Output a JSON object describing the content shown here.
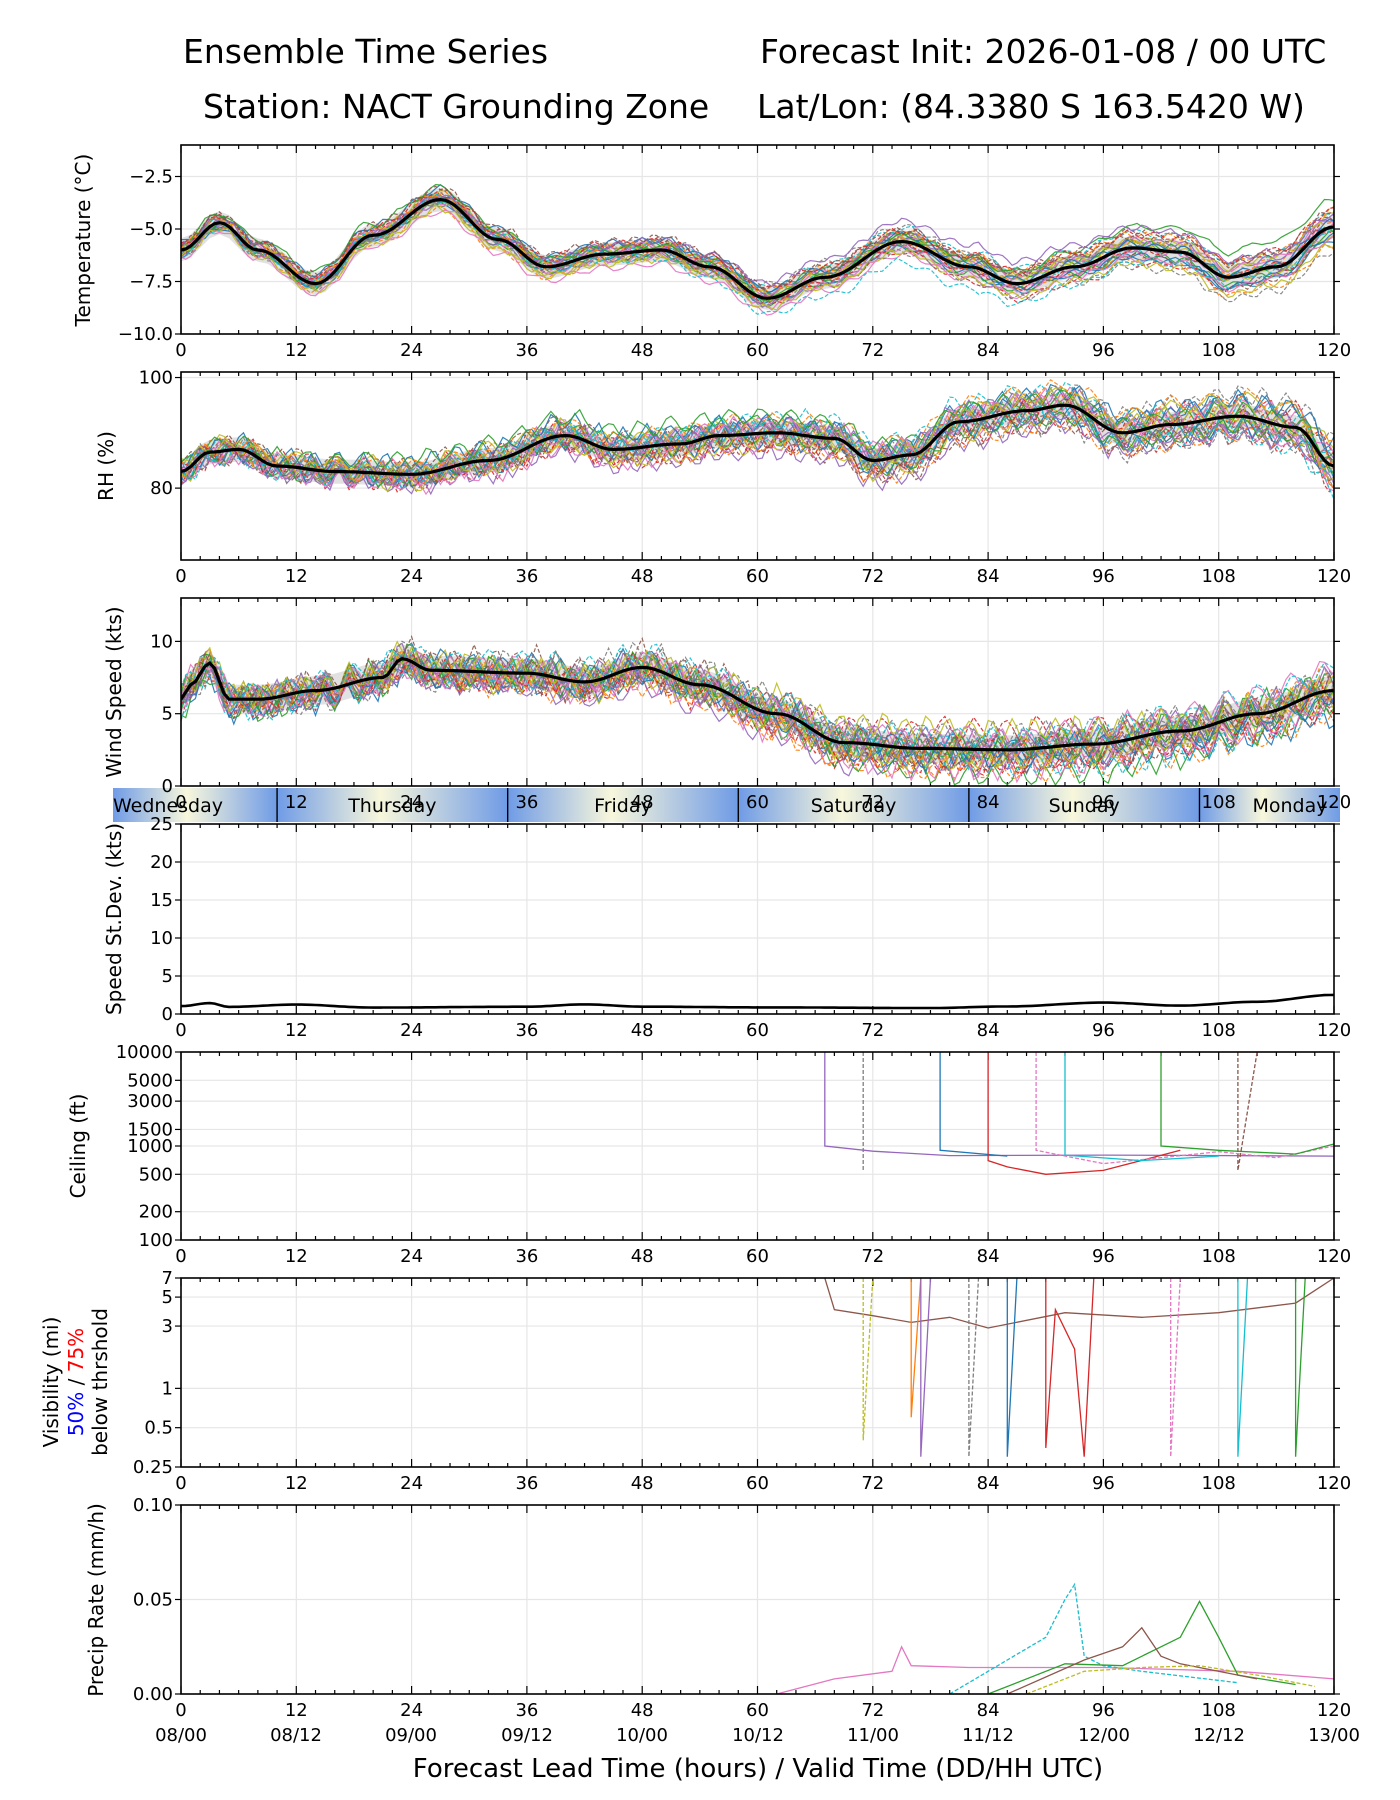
{
  "header": {
    "title_left": "Ensemble Time Series",
    "title_right": "Forecast Init: 2026-01-08 / 00 UTC",
    "station": "Station: NACT Grounding Zone",
    "latlon": "Lat/Lon: (84.3380 S 163.5420 W)"
  },
  "chart_data": {
    "type": "line",
    "x_label": "Forecast Lead Time (hours) / Valid Time (DD/HH UTC)",
    "x_ticks": [
      "0",
      "12",
      "24",
      "36",
      "48",
      "60",
      "72",
      "84",
      "96",
      "108",
      "120"
    ],
    "valid_times": [
      "08/00",
      "08/12",
      "09/00",
      "09/12",
      "10/00",
      "10/12",
      "11/00",
      "11/12",
      "12/00",
      "12/12",
      "13/00"
    ],
    "xlim": [
      0,
      120
    ],
    "day_band": [
      "Wednesday",
      "Thursday",
      "Friday",
      "Saturday",
      "Sunday",
      "Monday"
    ],
    "series_colors": [
      "#1f77b4",
      "#ff7f0e",
      "#2ca02c",
      "#d62728",
      "#9467bd",
      "#8c564b",
      "#e377c2",
      "#7f7f7f",
      "#bcbd22",
      "#17becf"
    ],
    "panels": [
      {
        "id": "temperature",
        "ylabel": "Temperature (°C)",
        "ylim": [
          -10,
          -1
        ],
        "yticks": [
          "−2.5",
          "−5.0",
          "−7.5",
          "−10.0"
        ],
        "mean": [
          [
            0,
            -6.0
          ],
          [
            4,
            -4.7
          ],
          [
            8,
            -6.0
          ],
          [
            14,
            -7.6
          ],
          [
            20,
            -5.3
          ],
          [
            27,
            -3.6
          ],
          [
            33,
            -5.5
          ],
          [
            38,
            -6.8
          ],
          [
            44,
            -6.2
          ],
          [
            50,
            -6.0
          ],
          [
            55,
            -6.8
          ],
          [
            61,
            -8.3
          ],
          [
            67,
            -7.3
          ],
          [
            75,
            -5.6
          ],
          [
            82,
            -6.8
          ],
          [
            87,
            -7.6
          ],
          [
            93,
            -6.8
          ],
          [
            99,
            -5.9
          ],
          [
            104,
            -6.1
          ],
          [
            109,
            -7.3
          ],
          [
            114,
            -6.8
          ],
          [
            120,
            -4.9
          ]
        ]
      },
      {
        "id": "rh",
        "ylabel": "RH (%)",
        "ylim": [
          67,
          101
        ],
        "yticks": [
          "100",
          "80"
        ],
        "mean": [
          [
            0,
            83
          ],
          [
            3,
            86.5
          ],
          [
            6,
            87
          ],
          [
            10,
            84
          ],
          [
            16,
            83
          ],
          [
            24,
            82.5
          ],
          [
            32,
            85
          ],
          [
            40,
            89.5
          ],
          [
            45,
            87
          ],
          [
            52,
            88
          ],
          [
            56,
            89.5
          ],
          [
            62,
            90
          ],
          [
            68,
            89
          ],
          [
            72,
            85
          ],
          [
            76,
            86
          ],
          [
            81,
            92
          ],
          [
            88,
            94
          ],
          [
            92,
            95
          ],
          [
            98,
            90
          ],
          [
            103,
            91.5
          ],
          [
            110,
            93
          ],
          [
            116,
            91
          ],
          [
            120,
            84
          ]
        ]
      },
      {
        "id": "wind_speed",
        "ylabel": "Wind Speed (kts)",
        "ylim": [
          0,
          13
        ],
        "yticks": [
          "10",
          "5",
          "0"
        ],
        "mean": [
          [
            0,
            6.0
          ],
          [
            1,
            7
          ],
          [
            3,
            8.5
          ],
          [
            5,
            6
          ],
          [
            8,
            6.0
          ],
          [
            14,
            6.6
          ],
          [
            21,
            7.5
          ],
          [
            23,
            8.8
          ],
          [
            26,
            8.0
          ],
          [
            36,
            7.8
          ],
          [
            42,
            7.2
          ],
          [
            48,
            8.2
          ],
          [
            54,
            7.0
          ],
          [
            62,
            5.0
          ],
          [
            69,
            3.0
          ],
          [
            77,
            2.6
          ],
          [
            86,
            2.5
          ],
          [
            95,
            2.9
          ],
          [
            104,
            3.8
          ],
          [
            112,
            5.0
          ],
          [
            120,
            6.6
          ]
        ]
      },
      {
        "id": "speed_stdev",
        "ylabel": "Speed St.Dev. (kts)",
        "ylim": [
          0,
          25
        ],
        "yticks": [
          "25",
          "20",
          "15",
          "10",
          "5",
          "0"
        ],
        "mean": [
          [
            0,
            1.1
          ],
          [
            3,
            1.5
          ],
          [
            5,
            1.0
          ],
          [
            12,
            1.3
          ],
          [
            20,
            0.9
          ],
          [
            36,
            1.0
          ],
          [
            42,
            1.3
          ],
          [
            48,
            1.0
          ],
          [
            60,
            0.9
          ],
          [
            78,
            0.8
          ],
          [
            86,
            1.0
          ],
          [
            96,
            1.5
          ],
          [
            104,
            1.1
          ],
          [
            112,
            1.6
          ],
          [
            120,
            2.5
          ]
        ]
      },
      {
        "id": "ceiling",
        "ylabel": "Ceiling (ft)",
        "scale": "log",
        "ylim": [
          100,
          10000
        ],
        "yticks": [
          "10000",
          "5000",
          "3000",
          "1500",
          "1000",
          "500",
          "200",
          "100"
        ],
        "members": [
          [
            [
              67,
              10000
            ],
            [
              67,
              1000
            ],
            [
              72,
              880
            ],
            [
              80,
              790
            ],
            [
              96,
              800
            ],
            [
              120,
              780
            ]
          ],
          [
            [
              71,
              10000
            ],
            [
              71,
              550
            ]
          ],
          [
            [
              79,
              10000
            ],
            [
              79,
              900
            ],
            [
              86,
              780
            ]
          ],
          [
            [
              84,
              10000
            ],
            [
              84,
              700
            ],
            [
              86,
              600
            ],
            [
              90,
              500
            ],
            [
              96,
              550
            ],
            [
              104,
              900
            ]
          ],
          [
            [
              89,
              10000
            ],
            [
              89,
              900
            ],
            [
              96,
              650
            ],
            [
              108,
              870
            ],
            [
              114,
              750
            ],
            [
              120,
              1000
            ]
          ],
          [
            [
              92,
              10000
            ],
            [
              92,
              800
            ],
            [
              100,
              700
            ],
            [
              108,
              780
            ]
          ],
          [
            [
              102,
              10000
            ],
            [
              102,
              1000
            ],
            [
              108,
              900
            ],
            [
              116,
              820
            ],
            [
              120,
              1050
            ]
          ],
          [
            [
              110,
              10000
            ],
            [
              110,
              550
            ],
            [
              112,
              10000
            ]
          ]
        ]
      },
      {
        "id": "visibility",
        "ylabel": "Visibility (mi)",
        "ylabel_50": "50%",
        "ylabel_sep": " / ",
        "ylabel_75": "75%",
        "ylabel_sub": "below thrshold",
        "scale": "log",
        "ylim": [
          0.25,
          7
        ],
        "yticks": [
          "7",
          "5",
          "3",
          "1",
          "0.5",
          "0.25"
        ],
        "members": [
          [
            [
              67,
              7
            ],
            [
              68,
              4
            ],
            [
              72,
              3.6
            ],
            [
              76,
              3.2
            ],
            [
              80,
              3.5
            ],
            [
              84,
              2.9
            ],
            [
              92,
              3.8
            ],
            [
              100,
              3.5
            ],
            [
              108,
              3.8
            ],
            [
              116,
              4.5
            ],
            [
              120,
              7
            ]
          ],
          [
            [
              71,
              7
            ],
            [
              71,
              0.4
            ],
            [
              72,
              7
            ]
          ],
          [
            [
              76,
              7
            ],
            [
              76,
              0.6
            ],
            [
              77,
              7
            ]
          ],
          [
            [
              77,
              7
            ],
            [
              77,
              0.3
            ],
            [
              78,
              7
            ]
          ],
          [
            [
              82,
              7
            ],
            [
              82,
              0.3
            ],
            [
              83,
              7
            ]
          ],
          [
            [
              86,
              7
            ],
            [
              86,
              0.3
            ],
            [
              87,
              7
            ]
          ],
          [
            [
              90,
              7
            ],
            [
              90,
              0.35
            ],
            [
              91,
              4
            ],
            [
              93,
              2
            ],
            [
              94,
              0.3
            ],
            [
              95,
              7
            ]
          ],
          [
            [
              103,
              7
            ],
            [
              103,
              0.3
            ],
            [
              104,
              7
            ]
          ],
          [
            [
              110,
              7
            ],
            [
              110,
              0.3
            ],
            [
              111,
              7
            ]
          ],
          [
            [
              116,
              7
            ],
            [
              116,
              0.3
            ],
            [
              117,
              7
            ]
          ]
        ]
      },
      {
        "id": "precip_rate",
        "ylabel": "Precip Rate (mm/h)",
        "ylim": [
          0,
          0.1
        ],
        "yticks": [
          "0.10",
          "0.05",
          "0.00"
        ],
        "members": [
          [
            [
              62,
              0
            ],
            [
              68,
              0.008
            ],
            [
              74,
              0.012
            ],
            [
              75,
              0.025
            ],
            [
              76,
              0.015
            ],
            [
              82,
              0.014
            ],
            [
              96,
              0.014
            ],
            [
              110,
              0.012
            ],
            [
              120,
              0.008
            ]
          ],
          [
            [
              80,
              0
            ],
            [
              86,
              0.018
            ],
            [
              90,
              0.03
            ],
            [
              92,
              0.05
            ],
            [
              93,
              0.058
            ],
            [
              94,
              0.02
            ],
            [
              96,
              0.015
            ],
            [
              100,
              0.012
            ],
            [
              110,
              0.006
            ]
          ],
          [
            [
              84,
              0
            ],
            [
              92,
              0.016
            ],
            [
              98,
              0.015
            ],
            [
              104,
              0.03
            ],
            [
              106,
              0.049
            ],
            [
              108,
              0.03
            ],
            [
              110,
              0.01
            ],
            [
              116,
              0.005
            ]
          ],
          [
            [
              86,
              0
            ],
            [
              94,
              0.018
            ],
            [
              98,
              0.025
            ],
            [
              100,
              0.035
            ],
            [
              102,
              0.02
            ],
            [
              104,
              0.016
            ],
            [
              112,
              0.008
            ]
          ],
          [
            [
              88,
              0
            ],
            [
              94,
              0.012
            ],
            [
              100,
              0.014
            ],
            [
              106,
              0.015
            ],
            [
              112,
              0.01
            ],
            [
              118,
              0.004
            ]
          ]
        ]
      }
    ]
  }
}
